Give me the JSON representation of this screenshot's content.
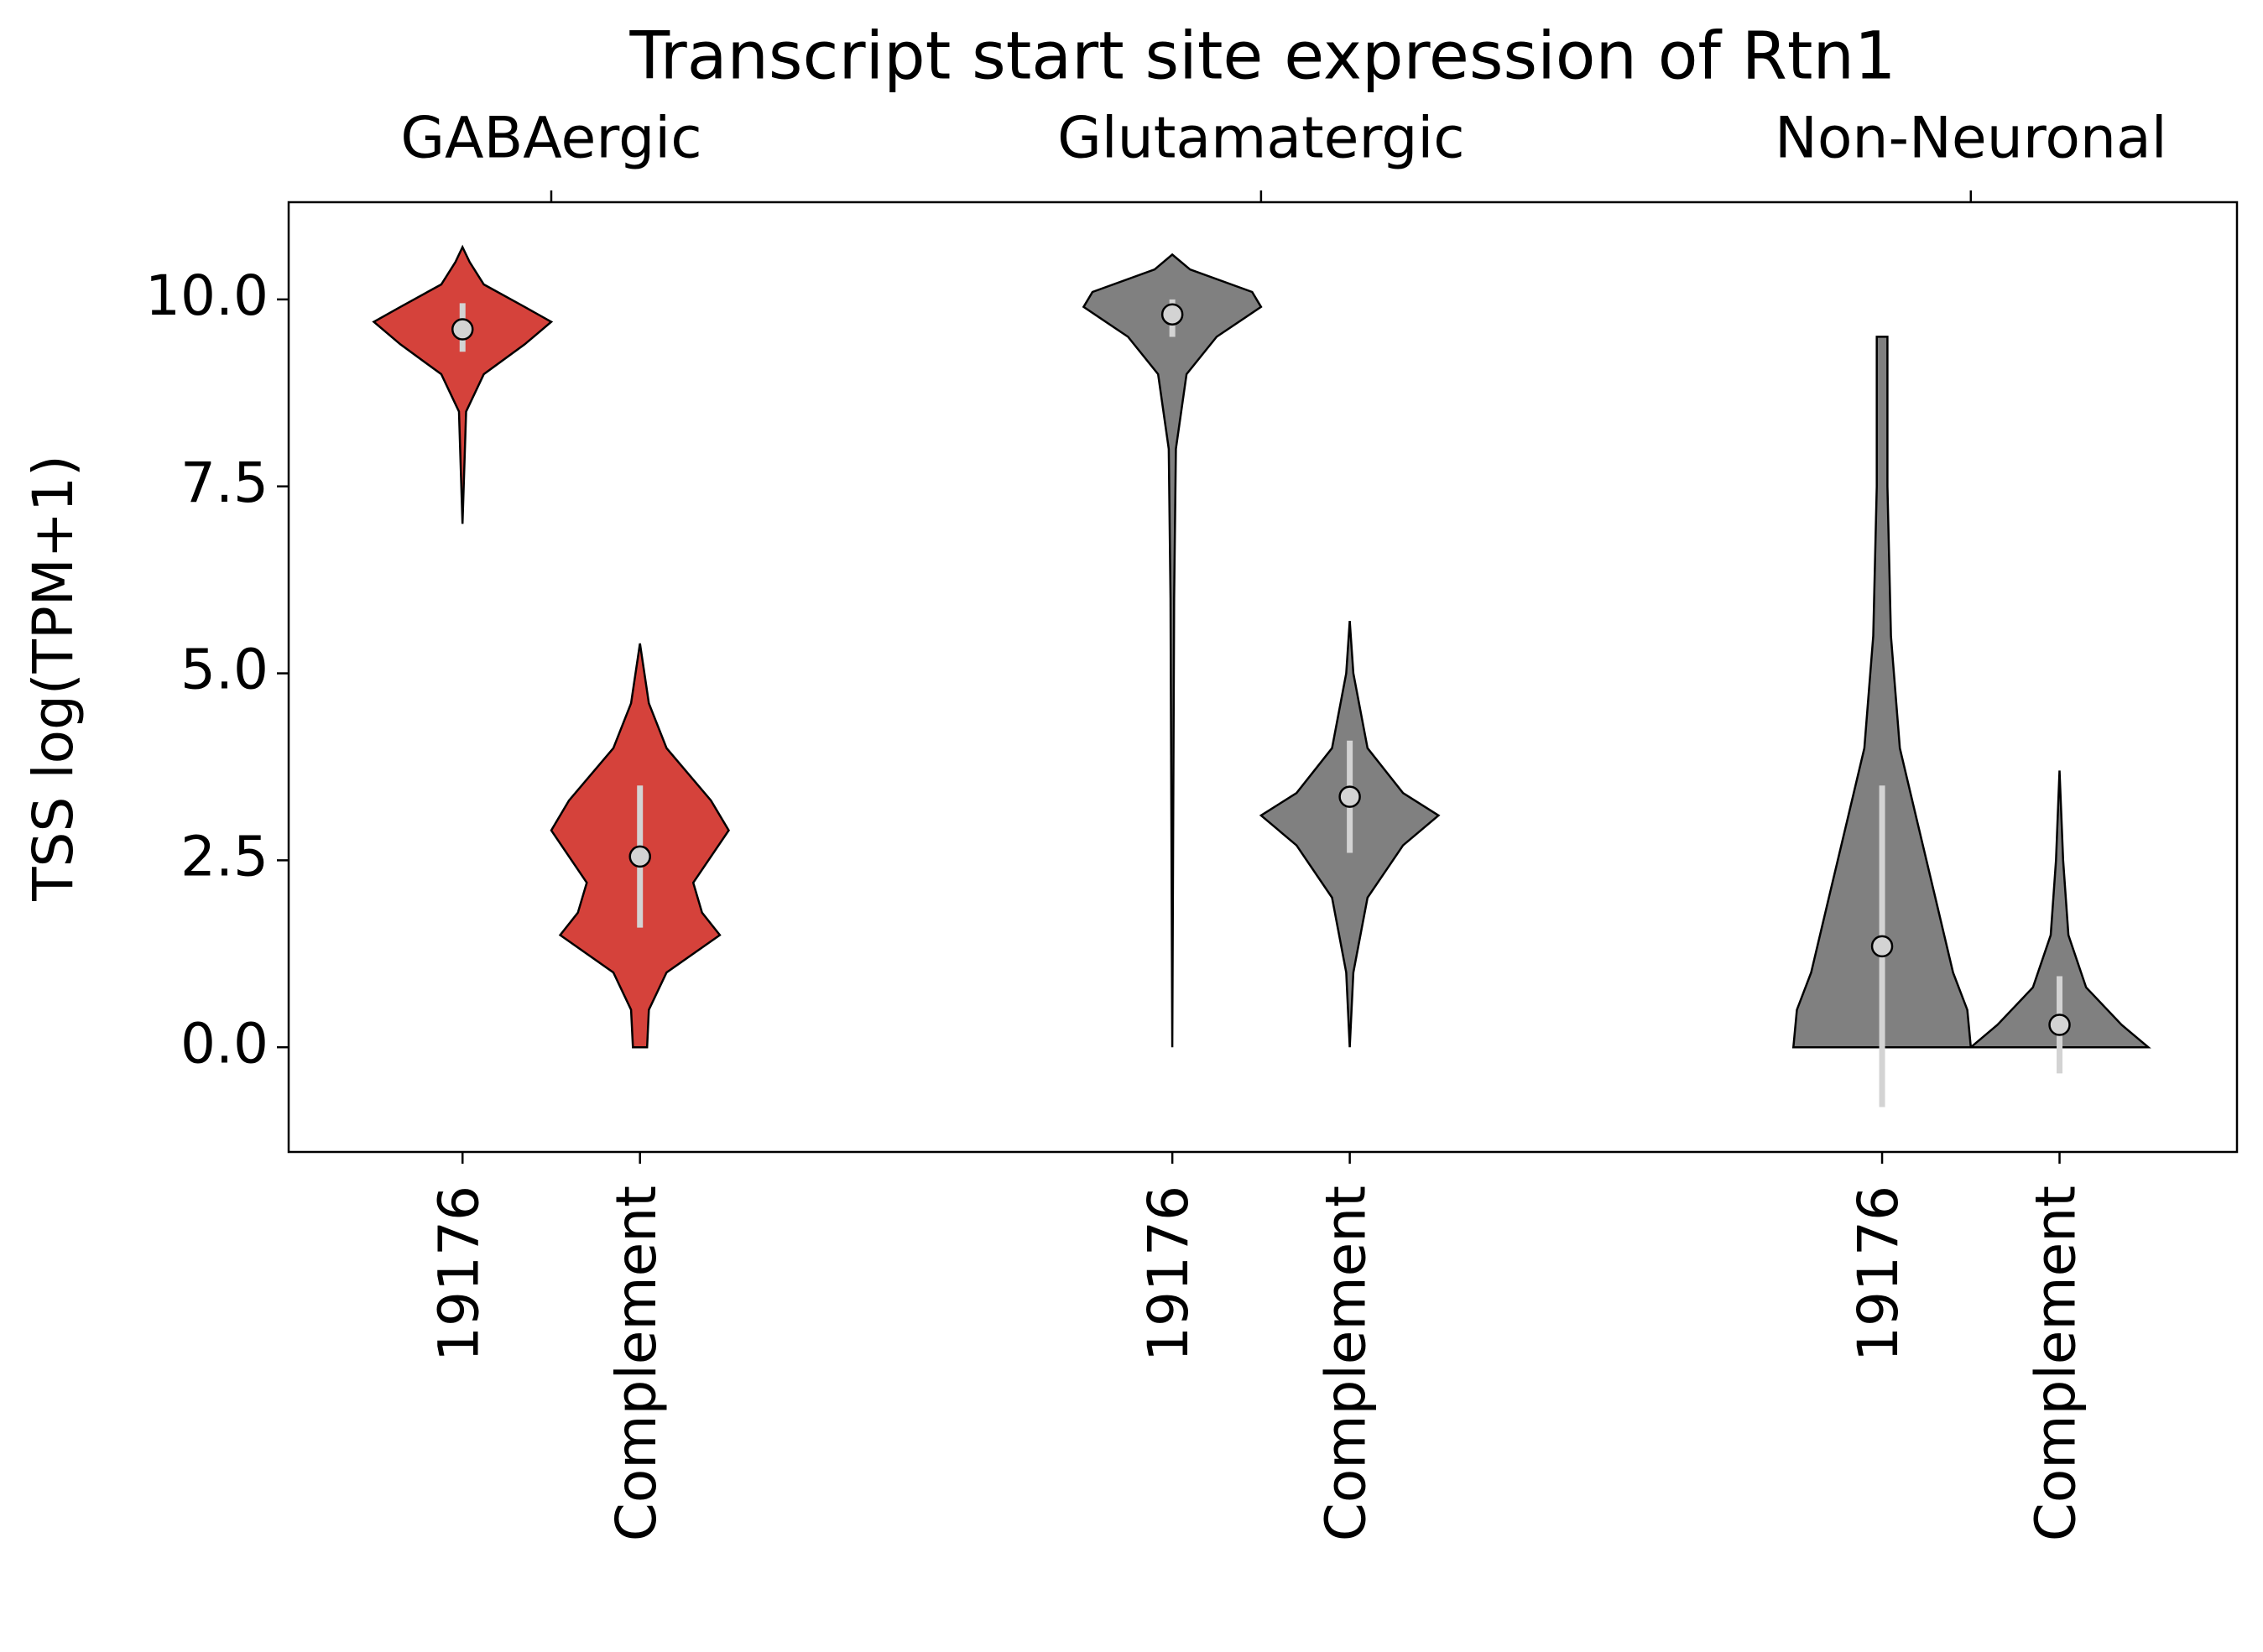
{
  "chart_data": {
    "type": "violin",
    "title": "Transcript start site expression of Rtn1",
    "y_label": "TSS log(TPM+1)",
    "ylim": [
      -1.4,
      11.3
    ],
    "yticks": [
      {
        "value": 0,
        "label": "0.0"
      },
      {
        "value": 2.5,
        "label": "2.5"
      },
      {
        "value": 5,
        "label": "5.0"
      },
      {
        "value": 7.5,
        "label": "7.5"
      },
      {
        "value": 10,
        "label": "10.0"
      }
    ],
    "series": [
      {
        "name": "GABAergic",
        "categories": [
          "19176",
          "Complement"
        ],
        "colors": [
          "#d5423b",
          "#d5423b"
        ],
        "violins": [
          {
            "center": 9.6,
            "lower": 9.3,
            "upper": 9.95,
            "shape_y": [
              7.0,
              8.5,
              9.0,
              9.4,
              9.7,
              9.9,
              10.2,
              10.5,
              10.7
            ],
            "shape_w": [
              0.0,
              0.02,
              0.12,
              0.35,
              0.5,
              0.35,
              0.12,
              0.04,
              0.0
            ]
          },
          {
            "center": 2.55,
            "lower": 1.6,
            "upper": 3.5,
            "shape_y": [
              0,
              0.5,
              1.0,
              1.5,
              1.8,
              2.2,
              2.9,
              3.3,
              4.0,
              4.6,
              5.4
            ],
            "shape_w": [
              0.04,
              0.05,
              0.15,
              0.45,
              0.35,
              0.3,
              0.5,
              0.4,
              0.15,
              0.05,
              0.0
            ]
          }
        ]
      },
      {
        "name": "Glutamatergic",
        "categories": [
          "19176",
          "Complement"
        ],
        "colors": [
          "#808080",
          "#808080"
        ],
        "violins": [
          {
            "center": 9.8,
            "lower": 9.5,
            "upper": 10.0,
            "shape_y": [
              0,
              6.0,
              8.0,
              9.0,
              9.5,
              9.9,
              10.1,
              10.4,
              10.6
            ],
            "shape_w": [
              0.0,
              0.01,
              0.02,
              0.08,
              0.25,
              0.5,
              0.45,
              0.1,
              0.0
            ]
          },
          {
            "center": 3.35,
            "lower": 2.6,
            "upper": 4.1,
            "shape_y": [
              0,
              1.0,
              2.0,
              2.7,
              3.1,
              3.4,
              4.0,
              5.0,
              5.7
            ],
            "shape_w": [
              0.0,
              0.02,
              0.1,
              0.3,
              0.5,
              0.3,
              0.1,
              0.02,
              0.0
            ]
          }
        ]
      },
      {
        "name": "Non-Neuronal",
        "categories": [
          "19176",
          "Complement"
        ],
        "colors": [
          "#808080",
          "#808080"
        ],
        "violins": [
          {
            "center": 1.35,
            "lower": -0.8,
            "upper": 3.5,
            "shape_y": [
              0,
              0.5,
              1.0,
              2.0,
              3.0,
              4.0,
              5.5,
              7.5,
              9.5
            ],
            "shape_w": [
              0.5,
              0.48,
              0.4,
              0.3,
              0.2,
              0.1,
              0.05,
              0.03,
              0.03
            ]
          },
          {
            "center": 0.3,
            "lower": -0.35,
            "upper": 0.95,
            "shape_y": [
              0,
              0.3,
              0.8,
              1.5,
              2.5,
              3.7
            ],
            "shape_w": [
              0.5,
              0.35,
              0.15,
              0.05,
              0.02,
              0.0
            ]
          }
        ]
      }
    ]
  }
}
